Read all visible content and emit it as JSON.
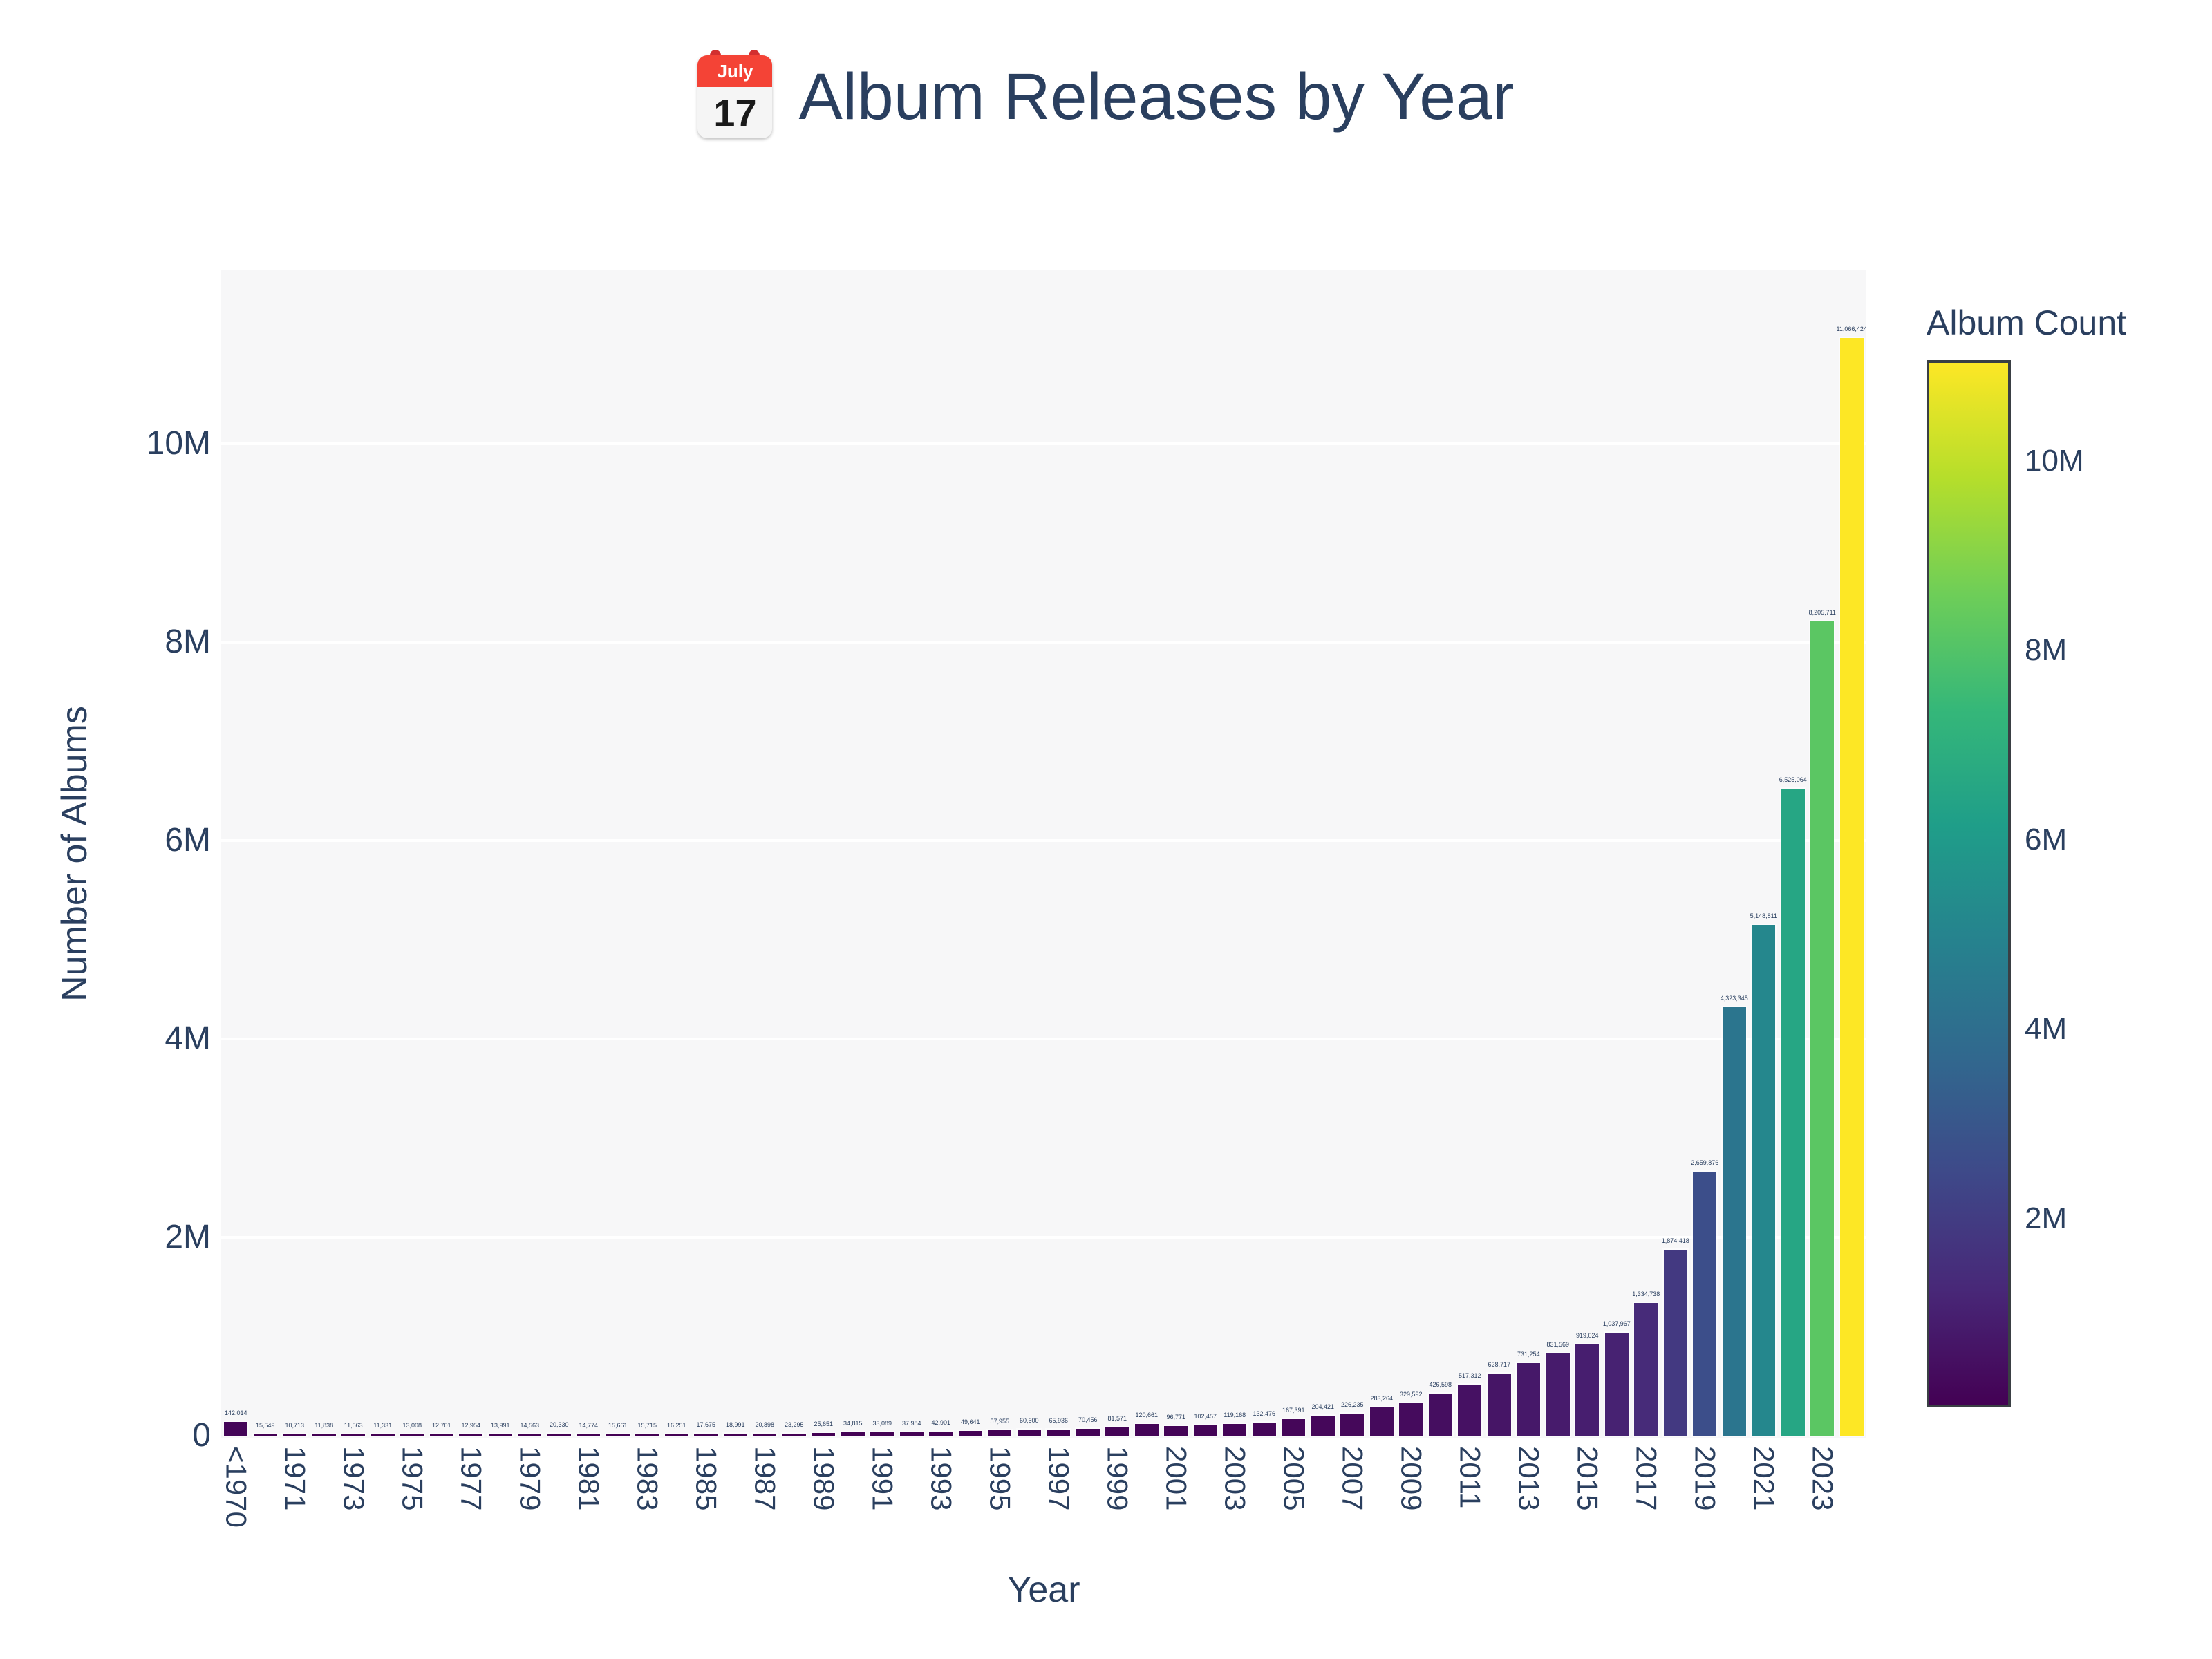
{
  "page": {
    "calendar": {
      "month": "July",
      "day": "17"
    }
  },
  "chart_data": {
    "type": "bar",
    "title": "Album Releases by Year",
    "xlabel": "Year",
    "ylabel": "Number of Albums",
    "categories": [
      "<1970",
      "1970",
      "1971",
      "1972",
      "1973",
      "1974",
      "1975",
      "1976",
      "1977",
      "1978",
      "1979",
      "1980",
      "1981",
      "1982",
      "1983",
      "1984",
      "1985",
      "1986",
      "1987",
      "1988",
      "1989",
      "1990",
      "1991",
      "1992",
      "1993",
      "1994",
      "1995",
      "1996",
      "1997",
      "1998",
      "1999",
      "2000",
      "2001",
      "2002",
      "2003",
      "2004",
      "2005",
      "2006",
      "2007",
      "2008",
      "2009",
      "2010",
      "2011",
      "2012",
      "2013",
      "2014",
      "2015",
      "2016",
      "2017",
      "2018",
      "2019",
      "2020",
      "2021",
      "2022",
      "2023",
      "2024"
    ],
    "values": [
      142014,
      15549,
      10713,
      11838,
      11563,
      11331,
      13008,
      12701,
      12954,
      13991,
      14563,
      20330,
      14774,
      15661,
      15715,
      16251,
      17675,
      18991,
      20898,
      23295,
      25651,
      34815,
      33089,
      37984,
      42901,
      49641,
      57955,
      60600,
      65936,
      70456,
      81571,
      120661,
      96771,
      102457,
      119168,
      132476,
      167391,
      204421,
      226235,
      283264,
      329592,
      426598,
      517312,
      628717,
      731254,
      831569,
      919024,
      1037967,
      1334738,
      1874418,
      2659876,
      4323345,
      5148811,
      6525064,
      8205711,
      11066424
    ],
    "x_tick_step": 2,
    "ytick_labels": [
      "0",
      "2M",
      "4M",
      "6M",
      "8M",
      "10M"
    ],
    "ytick_values": [
      0,
      2000000,
      4000000,
      6000000,
      8000000,
      10000000
    ],
    "ylim": [
      0,
      11760000
    ],
    "grid": true,
    "legend_position": "none",
    "colorbar": {
      "title": "Album Count",
      "tick_labels": [
        "2M",
        "4M",
        "6M",
        "8M",
        "10M"
      ],
      "tick_values": [
        2000000,
        4000000,
        6000000,
        8000000,
        10000000
      ]
    },
    "colors": {
      "viridis_palette": [
        "#440154",
        "#482878",
        "#3e4989",
        "#31688e",
        "#26828e",
        "#1f9e89",
        "#35b779",
        "#6ece58",
        "#b5de2b",
        "#fde725"
      ],
      "text": "#2a3f5f",
      "plot_bg": "#f7f7f8",
      "grid": "#ffffff",
      "page_bg": "#ffffff",
      "calendar_red": "#f44336"
    }
  }
}
